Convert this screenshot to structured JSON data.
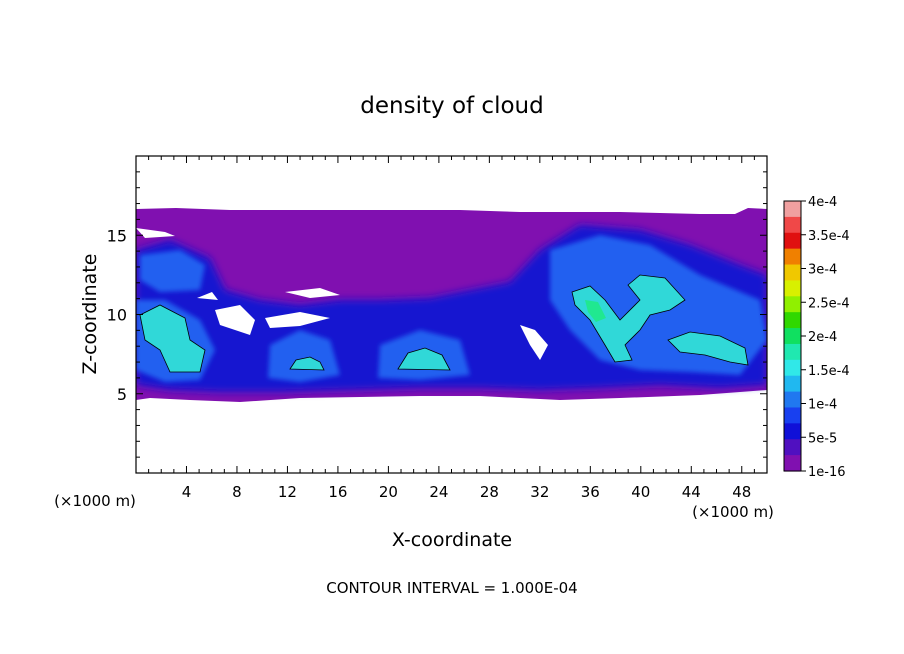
{
  "chart_data": {
    "type": "heatmap",
    "title": "density of cloud",
    "xlabel": "X-coordinate",
    "ylabel": "Z-coordinate",
    "x_unit": "(×1000 m)",
    "y_unit": "(×1000 m)",
    "footer": "CONTOUR INTERVAL = 1.000E-04",
    "xlim": [
      0,
      50
    ],
    "ylim": [
      0,
      20
    ],
    "x_ticks": [
      4,
      8,
      12,
      16,
      20,
      24,
      28,
      32,
      36,
      40,
      44,
      48
    ],
    "y_ticks": [
      5,
      10,
      15
    ],
    "contour_interval": 0.0001,
    "colorbar": {
      "labels": [
        "4e-4",
        "3.5e-4",
        "3e-4",
        "2.5e-4",
        "2e-4",
        "1.5e-4",
        "1e-4",
        "5e-5",
        "1e-16"
      ],
      "values": [
        0.0004,
        0.00035,
        0.0003,
        0.00025,
        0.0002,
        0.00015,
        0.0001,
        5e-05,
        1e-16
      ],
      "colors": [
        "#f0a0a0",
        "#f04848",
        "#e01010",
        "#f08000",
        "#f0c800",
        "#d8f000",
        "#90f000",
        "#30d800",
        "#10e060",
        "#20e8b0",
        "#30e8e8",
        "#20b8f0",
        "#2078f0",
        "#1840f0",
        "#1010d8",
        "#5010c0",
        "#8010b0"
      ]
    },
    "cloud_extent": {
      "x_range": [
        0,
        50
      ],
      "z_range": [
        5,
        16.5
      ],
      "note": "density > 1e-16 between about z=5 and z=16.5 km"
    },
    "regions": [
      {
        "x": 2.5,
        "z": 8.5,
        "level": "1e-4 to 1.5e-4"
      },
      {
        "x": 13.5,
        "z": 7.0,
        "level": "1e-4 to 1.5e-4"
      },
      {
        "x": 23.0,
        "z": 7.2,
        "level": "1e-4 to 1.5e-4"
      },
      {
        "x": 36.0,
        "z": 10.0,
        "level": "1.5e-4 to 2e-4"
      },
      {
        "x": 41.0,
        "z": 11.5,
        "level": "1e-4 to 1.5e-4"
      },
      {
        "x": 45.0,
        "z": 8.2,
        "level": "1e-4 to 1.5e-4"
      }
    ]
  }
}
